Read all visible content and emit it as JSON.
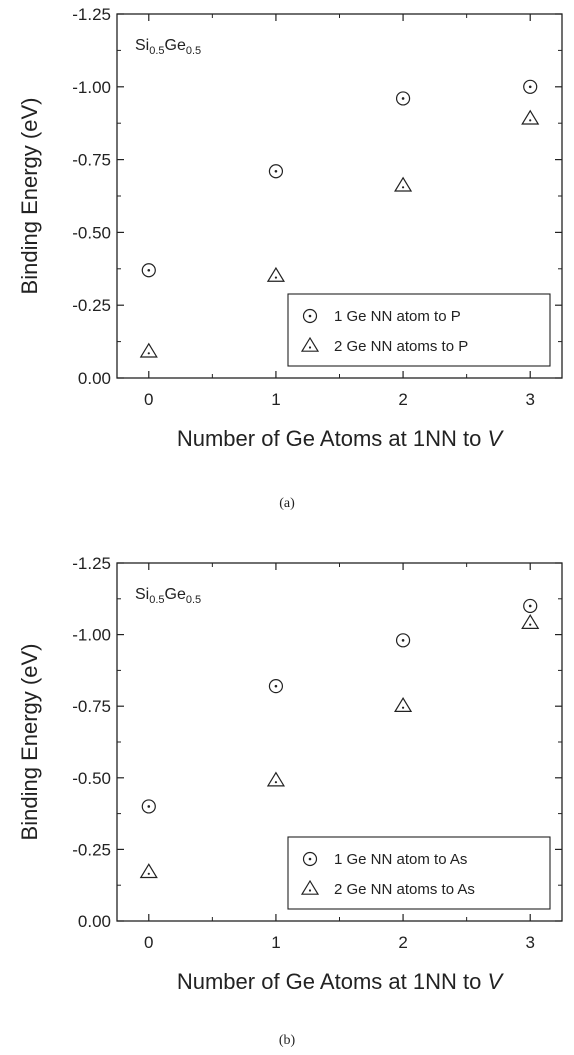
{
  "chart_data": [
    {
      "type": "scatter",
      "panel_label": "(a)",
      "inset_label": {
        "main1": "Si",
        "sub1": "0.5",
        "main2": "Ge",
        "sub2": "0.5"
      },
      "xlabel": "Number of Ge Atoms at 1NN to ",
      "xlabel_italic": "V",
      "ylabel": "Binding Energy (eV)",
      "xlim": [
        -0.25,
        3.25
      ],
      "ylim": [
        0.0,
        -1.25
      ],
      "x_ticks": [
        0,
        1,
        2,
        3
      ],
      "x_tick_labels": [
        "0",
        "1",
        "2",
        "3"
      ],
      "y_ticks": [
        0.0,
        -0.25,
        -0.5,
        -0.75,
        -1.0,
        -1.25
      ],
      "y_tick_labels": [
        "0.00",
        "-0.25",
        "-0.50",
        "-0.75",
        "-1.00",
        "-1.25"
      ],
      "legend_position": "bottom-right",
      "series": [
        {
          "name": "1 Ge NN atom to P",
          "marker": "circle-dot",
          "x": [
            0,
            1,
            2,
            3
          ],
          "y": [
            -0.37,
            -0.71,
            -0.96,
            -1.0
          ]
        },
        {
          "name": "2 Ge NN atoms to P",
          "marker": "triangle-dot",
          "x": [
            0,
            1,
            2,
            3
          ],
          "y": [
            -0.09,
            -0.35,
            -0.66,
            -0.89
          ]
        }
      ]
    },
    {
      "type": "scatter",
      "panel_label": "(b)",
      "inset_label": {
        "main1": "Si",
        "sub1": "0.5",
        "main2": "Ge",
        "sub2": "0.5"
      },
      "xlabel": "Number of Ge Atoms at 1NN to ",
      "xlabel_italic": "V",
      "ylabel": "Binding Energy (eV)",
      "xlim": [
        -0.25,
        3.25
      ],
      "ylim": [
        0.0,
        -1.25
      ],
      "x_ticks": [
        0,
        1,
        2,
        3
      ],
      "x_tick_labels": [
        "0",
        "1",
        "2",
        "3"
      ],
      "y_ticks": [
        0.0,
        -0.25,
        -0.5,
        -0.75,
        -1.0,
        -1.25
      ],
      "y_tick_labels": [
        "0.00",
        "-0.25",
        "-0.50",
        "-0.75",
        "-1.00",
        "-1.25"
      ],
      "legend_position": "bottom-right",
      "series": [
        {
          "name": "1 Ge NN atom to As",
          "marker": "circle-dot",
          "x": [
            0,
            1,
            2,
            3
          ],
          "y": [
            -0.4,
            -0.82,
            -0.98,
            -1.1
          ]
        },
        {
          "name": "2 Ge NN atoms to As",
          "marker": "triangle-dot",
          "x": [
            0,
            1,
            2,
            3
          ],
          "y": [
            -0.17,
            -0.49,
            -0.75,
            -1.04
          ]
        }
      ]
    }
  ]
}
